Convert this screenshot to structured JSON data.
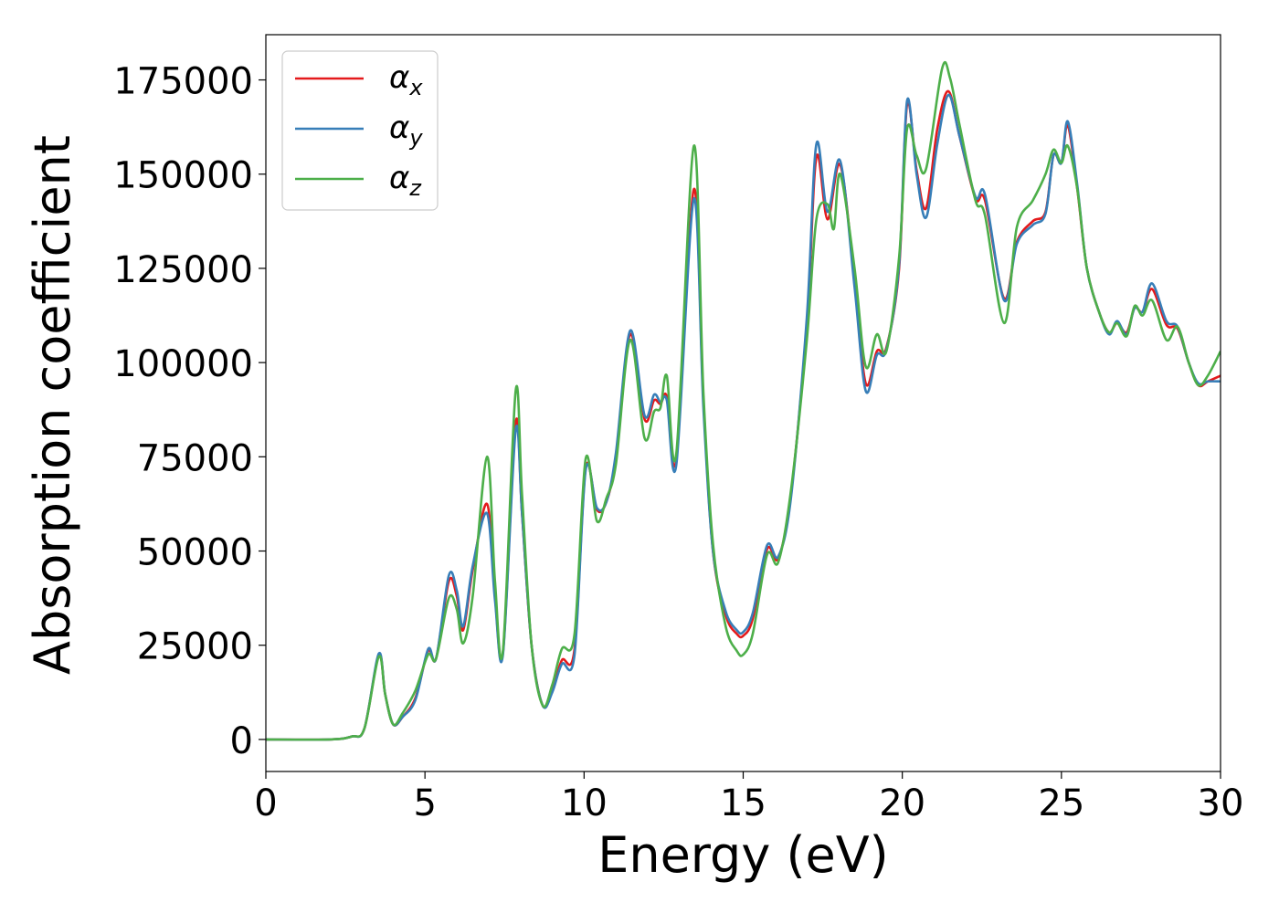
{
  "chart_data": {
    "type": "line",
    "title": "",
    "xlabel": "Energy (eV)",
    "ylabel": "Absorption coefficient",
    "xlim": [
      0,
      30
    ],
    "ylim": [
      -8500,
      187000
    ],
    "xticks": [
      0,
      5,
      10,
      15,
      20,
      25,
      30
    ],
    "yticks": [
      0,
      25000,
      50000,
      75000,
      100000,
      125000,
      150000,
      175000
    ],
    "grid": false,
    "legend_position": "top-left",
    "series": [
      {
        "name": "α_x",
        "name_base": "α",
        "name_sub": "x",
        "color": "#e41a1c",
        "points": [
          [
            0,
            0
          ],
          [
            2,
            0
          ],
          [
            2.7,
            800
          ],
          [
            3.1,
            3000
          ],
          [
            3.55,
            22500
          ],
          [
            3.75,
            12000
          ],
          [
            4.0,
            4000
          ],
          [
            4.3,
            6000
          ],
          [
            4.7,
            11000
          ],
          [
            5.1,
            23500
          ],
          [
            5.35,
            21500
          ],
          [
            5.75,
            42000
          ],
          [
            6.0,
            38000
          ],
          [
            6.2,
            29000
          ],
          [
            6.5,
            45000
          ],
          [
            6.95,
            62500
          ],
          [
            7.2,
            38000
          ],
          [
            7.45,
            23000
          ],
          [
            7.85,
            84000
          ],
          [
            8.05,
            60000
          ],
          [
            8.35,
            25000
          ],
          [
            8.7,
            9000
          ],
          [
            9.0,
            13000
          ],
          [
            9.3,
            21000
          ],
          [
            9.7,
            24000
          ],
          [
            10.05,
            72000
          ],
          [
            10.4,
            61000
          ],
          [
            10.7,
            63000
          ],
          [
            11.0,
            75000
          ],
          [
            11.45,
            107500
          ],
          [
            11.9,
            85000
          ],
          [
            12.2,
            90000
          ],
          [
            12.4,
            89000
          ],
          [
            12.6,
            91000
          ],
          [
            12.9,
            74500
          ],
          [
            13.45,
            146000
          ],
          [
            13.75,
            90000
          ],
          [
            14.05,
            50000
          ],
          [
            14.45,
            33000
          ],
          [
            14.8,
            28000
          ],
          [
            15.0,
            27500
          ],
          [
            15.3,
            32000
          ],
          [
            15.75,
            50500
          ],
          [
            16.1,
            48000
          ],
          [
            16.5,
            65000
          ],
          [
            17.0,
            110000
          ],
          [
            17.3,
            154500
          ],
          [
            17.65,
            138000
          ],
          [
            18.05,
            152500
          ],
          [
            18.5,
            122000
          ],
          [
            18.85,
            94500
          ],
          [
            19.2,
            103000
          ],
          [
            19.5,
            104000
          ],
          [
            19.9,
            125000
          ],
          [
            20.15,
            168500
          ],
          [
            20.45,
            151000
          ],
          [
            20.75,
            141000
          ],
          [
            21.1,
            162000
          ],
          [
            21.45,
            172000
          ],
          [
            21.8,
            160000
          ],
          [
            22.3,
            143500
          ],
          [
            22.6,
            143000
          ],
          [
            23.2,
            117000
          ],
          [
            23.6,
            132000
          ],
          [
            24.1,
            137500
          ],
          [
            24.5,
            140000
          ],
          [
            24.75,
            155000
          ],
          [
            25.0,
            153000
          ],
          [
            25.2,
            163000
          ],
          [
            25.5,
            146000
          ],
          [
            25.8,
            125000
          ],
          [
            26.2,
            113000
          ],
          [
            26.5,
            108000
          ],
          [
            26.75,
            110500
          ],
          [
            27.05,
            108000
          ],
          [
            27.3,
            114500
          ],
          [
            27.55,
            113500
          ],
          [
            27.85,
            119500
          ],
          [
            28.3,
            110000
          ],
          [
            28.65,
            109000
          ],
          [
            29.0,
            100000
          ],
          [
            29.3,
            94000
          ],
          [
            29.6,
            95000
          ],
          [
            30,
            96500
          ]
        ]
      },
      {
        "name": "α_y",
        "name_base": "α",
        "name_sub": "y",
        "color": "#377eb8",
        "points": [
          [
            0,
            0
          ],
          [
            2,
            0
          ],
          [
            2.7,
            800
          ],
          [
            3.1,
            3000
          ],
          [
            3.55,
            22800
          ],
          [
            3.75,
            12000
          ],
          [
            4.0,
            4000
          ],
          [
            4.3,
            6000
          ],
          [
            4.7,
            10500
          ],
          [
            5.1,
            24000
          ],
          [
            5.35,
            21500
          ],
          [
            5.75,
            43500
          ],
          [
            6.0,
            39500
          ],
          [
            6.2,
            30000
          ],
          [
            6.5,
            46000
          ],
          [
            6.95,
            60000
          ],
          [
            7.2,
            37000
          ],
          [
            7.45,
            22500
          ],
          [
            7.85,
            82000
          ],
          [
            8.05,
            60000
          ],
          [
            8.35,
            25000
          ],
          [
            8.7,
            9000
          ],
          [
            9.0,
            12500
          ],
          [
            9.3,
            20000
          ],
          [
            9.7,
            22500
          ],
          [
            10.05,
            71500
          ],
          [
            10.4,
            61500
          ],
          [
            10.7,
            63000
          ],
          [
            11.0,
            76000
          ],
          [
            11.45,
            108500
          ],
          [
            11.9,
            86000
          ],
          [
            12.2,
            91500
          ],
          [
            12.4,
            89500
          ],
          [
            12.6,
            90000
          ],
          [
            12.9,
            73000
          ],
          [
            13.45,
            143500
          ],
          [
            13.75,
            88000
          ],
          [
            14.05,
            50000
          ],
          [
            14.45,
            34000
          ],
          [
            14.8,
            29000
          ],
          [
            15.0,
            28500
          ],
          [
            15.3,
            33500
          ],
          [
            15.75,
            51500
          ],
          [
            16.1,
            48500
          ],
          [
            16.5,
            64000
          ],
          [
            17.0,
            112000
          ],
          [
            17.3,
            158000
          ],
          [
            17.65,
            140000
          ],
          [
            18.05,
            153500
          ],
          [
            18.5,
            120000
          ],
          [
            18.85,
            92500
          ],
          [
            19.2,
            102000
          ],
          [
            19.5,
            103500
          ],
          [
            19.9,
            126000
          ],
          [
            20.15,
            169500
          ],
          [
            20.45,
            150000
          ],
          [
            20.75,
            138500
          ],
          [
            21.1,
            158000
          ],
          [
            21.45,
            171000
          ],
          [
            21.8,
            160000
          ],
          [
            22.3,
            144000
          ],
          [
            22.6,
            144500
          ],
          [
            23.2,
            116500
          ],
          [
            23.6,
            131500
          ],
          [
            24.1,
            136500
          ],
          [
            24.5,
            139500
          ],
          [
            24.75,
            155000
          ],
          [
            25.0,
            153000
          ],
          [
            25.2,
            164000
          ],
          [
            25.5,
            147000
          ],
          [
            25.8,
            125000
          ],
          [
            26.2,
            113000
          ],
          [
            26.5,
            107500
          ],
          [
            26.75,
            111000
          ],
          [
            27.05,
            107500
          ],
          [
            27.3,
            114500
          ],
          [
            27.55,
            113500
          ],
          [
            27.85,
            121000
          ],
          [
            28.3,
            111000
          ],
          [
            28.65,
            109500
          ],
          [
            29.0,
            100000
          ],
          [
            29.3,
            94500
          ],
          [
            29.6,
            95000
          ],
          [
            30,
            95000
          ]
        ]
      },
      {
        "name": "α_z",
        "name_base": "α",
        "name_sub": "z",
        "color": "#4daf4a",
        "points": [
          [
            0,
            0
          ],
          [
            2,
            0
          ],
          [
            2.7,
            800
          ],
          [
            3.1,
            3000
          ],
          [
            3.55,
            22000
          ],
          [
            3.75,
            12000
          ],
          [
            4.0,
            4000
          ],
          [
            4.3,
            7000
          ],
          [
            4.7,
            13000
          ],
          [
            5.1,
            22500
          ],
          [
            5.35,
            21500
          ],
          [
            5.75,
            37500
          ],
          [
            6.0,
            34500
          ],
          [
            6.2,
            25500
          ],
          [
            6.5,
            38000
          ],
          [
            6.95,
            75000
          ],
          [
            7.2,
            42000
          ],
          [
            7.45,
            23500
          ],
          [
            7.85,
            92500
          ],
          [
            8.05,
            65000
          ],
          [
            8.35,
            25000
          ],
          [
            8.7,
            9000
          ],
          [
            9.0,
            14500
          ],
          [
            9.3,
            24000
          ],
          [
            9.7,
            28000
          ],
          [
            10.05,
            74500
          ],
          [
            10.4,
            58000
          ],
          [
            10.7,
            64000
          ],
          [
            11.0,
            73000
          ],
          [
            11.45,
            106000
          ],
          [
            11.9,
            80000
          ],
          [
            12.2,
            87000
          ],
          [
            12.4,
            88000
          ],
          [
            12.6,
            96500
          ],
          [
            12.9,
            76000
          ],
          [
            13.45,
            157500
          ],
          [
            13.75,
            92000
          ],
          [
            14.05,
            52000
          ],
          [
            14.45,
            30000
          ],
          [
            14.8,
            23500
          ],
          [
            15.0,
            22500
          ],
          [
            15.3,
            28000
          ],
          [
            15.75,
            49000
          ],
          [
            16.1,
            47000
          ],
          [
            16.5,
            66000
          ],
          [
            17.0,
            106000
          ],
          [
            17.3,
            138000
          ],
          [
            17.65,
            142000
          ],
          [
            17.85,
            135500
          ],
          [
            18.05,
            150000
          ],
          [
            18.5,
            125000
          ],
          [
            18.85,
            99000
          ],
          [
            19.2,
            107500
          ],
          [
            19.5,
            103000
          ],
          [
            19.9,
            128000
          ],
          [
            20.15,
            162000
          ],
          [
            20.45,
            155000
          ],
          [
            20.75,
            151500
          ],
          [
            21.25,
            178000
          ],
          [
            21.5,
            175500
          ],
          [
            21.8,
            163000
          ],
          [
            22.3,
            143000
          ],
          [
            22.6,
            139000
          ],
          [
            23.2,
            110500
          ],
          [
            23.6,
            136000
          ],
          [
            24.1,
            143000
          ],
          [
            24.5,
            150000
          ],
          [
            24.75,
            156500
          ],
          [
            25.0,
            153000
          ],
          [
            25.2,
            157500
          ],
          [
            25.5,
            146000
          ],
          [
            25.8,
            125000
          ],
          [
            26.2,
            113000
          ],
          [
            26.5,
            108000
          ],
          [
            26.75,
            110500
          ],
          [
            27.05,
            107000
          ],
          [
            27.3,
            115000
          ],
          [
            27.55,
            112500
          ],
          [
            27.85,
            116500
          ],
          [
            28.3,
            106000
          ],
          [
            28.65,
            109500
          ],
          [
            29.0,
            100000
          ],
          [
            29.3,
            94000
          ],
          [
            29.6,
            96500
          ],
          [
            30,
            103000
          ]
        ]
      }
    ]
  }
}
